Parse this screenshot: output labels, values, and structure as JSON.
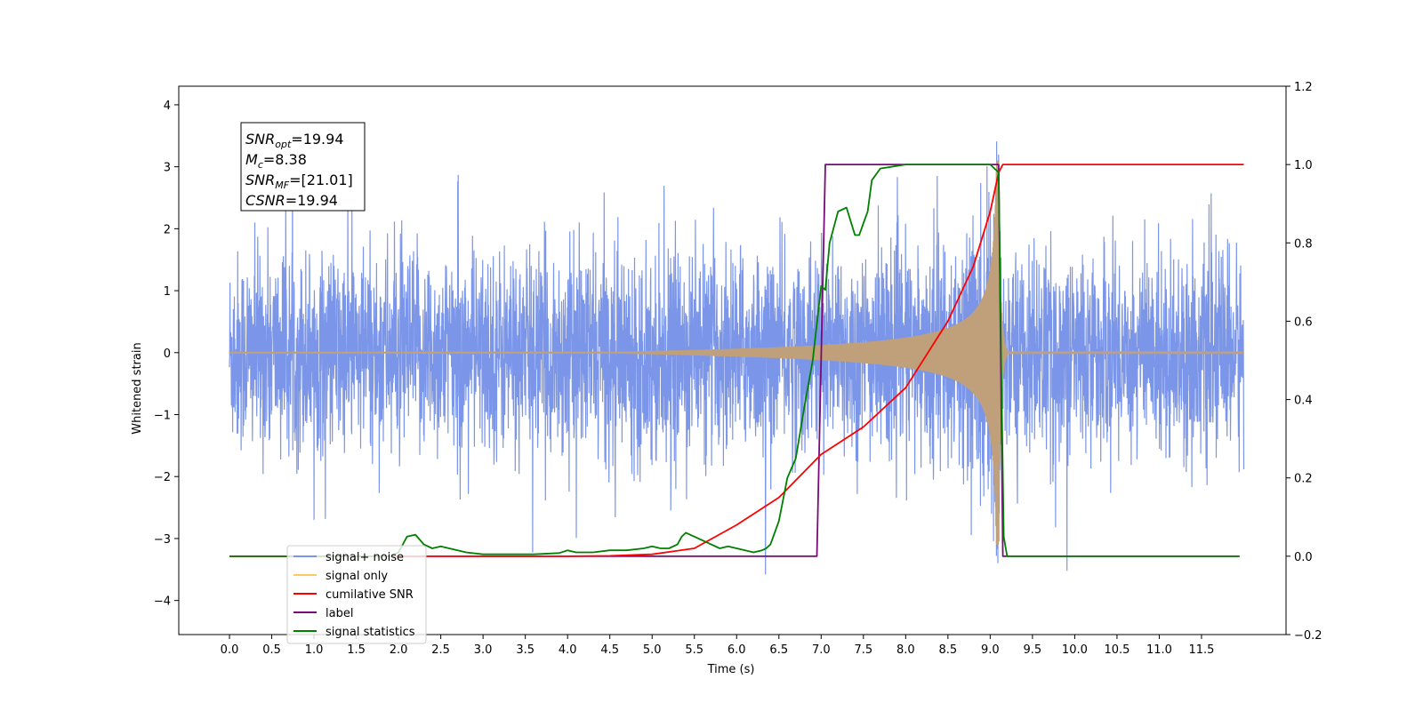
{
  "chart_data": {
    "type": "line",
    "xlabel": "Time (s)",
    "ylabel": "Whitened strain",
    "xlim": [
      -0.6,
      12.5
    ],
    "ylim": [
      -4.55,
      4.3
    ],
    "y2lim": [
      -0.2,
      1.2
    ],
    "grid": false,
    "legend_position": "lower-left",
    "x_ticks": [
      0.0,
      0.5,
      1.0,
      1.5,
      2.0,
      2.5,
      3.0,
      3.5,
      4.0,
      4.5,
      5.0,
      5.5,
      6.0,
      6.5,
      7.0,
      7.5,
      8.0,
      8.5,
      9.0,
      9.5,
      10.0,
      10.5,
      11.0,
      11.5
    ],
    "x_tick_labels": [
      "0.0",
      "0.5",
      "1.0",
      "1.5",
      "2.0",
      "2.5",
      "3.0",
      "3.5",
      "4.0",
      "4.5",
      "5.0",
      "5.5",
      "6.0",
      "6.5",
      "7.0",
      "7.5",
      "8.0",
      "8.5",
      "9.0",
      "9.5",
      "10.0",
      "10.5",
      "11.0",
      "11.5"
    ],
    "y_ticks": [
      4,
      3,
      2,
      1,
      0,
      -1,
      -2,
      -3,
      -4
    ],
    "y_tick_labels": [
      "4",
      "3",
      "2",
      "1",
      "0",
      "−1",
      "−2",
      "−3",
      "−4"
    ],
    "y2_ticks": [
      1.2,
      1.0,
      0.8,
      0.6,
      0.4,
      0.2,
      0.0,
      -0.2
    ],
    "y2_tick_labels": [
      "1.2",
      "1.0",
      "0.8",
      "0.6",
      "0.4",
      "0.2",
      "0.0",
      "−0.2"
    ],
    "info_box": {
      "lines": [
        {
          "sym": "SNR",
          "sub": "opt",
          "value": "=19.94"
        },
        {
          "sym": "M",
          "sub": "c",
          "value": "=8.38"
        },
        {
          "sym": "SNR",
          "sub": "MF",
          "value": "=[21.01]"
        },
        {
          "sym": "CSNR",
          "sub": "",
          "value": "=19.94"
        }
      ]
    },
    "series": [
      {
        "name": "signal+ noise",
        "axis": "left",
        "color": "#7b96e8",
        "description_values": {
          "x_range": [
            0.0,
            12.0
          ],
          "noise_typical_amplitude": 1.2,
          "noise_peak_amplitude": 3.9
        }
      },
      {
        "name": "signal only",
        "axis": "left",
        "color": "#bfa07a",
        "chirp": {
          "start": 4.0,
          "merger": 9.1,
          "peak_amplitude": 3.1,
          "ringdown_end": 9.2
        }
      },
      {
        "name": "cumilative SNR",
        "axis": "right",
        "color": "#ff0000",
        "x": [
          0.0,
          3.0,
          4.0,
          4.5,
          5.0,
          5.5,
          6.0,
          6.5,
          7.0,
          7.5,
          8.0,
          8.5,
          8.8,
          9.0,
          9.1,
          9.15,
          12.0
        ],
        "values": [
          0.0,
          0.0,
          0.0,
          0.001,
          0.005,
          0.02,
          0.08,
          0.15,
          0.26,
          0.33,
          0.43,
          0.6,
          0.74,
          0.88,
          0.98,
          1.0,
          1.0
        ]
      },
      {
        "name": "label",
        "axis": "right",
        "color": "#7a0a7a",
        "x": [
          0.0,
          6.95,
          7.05,
          9.1,
          9.15,
          11.95
        ],
        "values": [
          0.0,
          0.0,
          1.0,
          1.0,
          0.0,
          0.0
        ]
      },
      {
        "name": "signal statistics",
        "axis": "right",
        "color": "#008000",
        "x": [
          0.0,
          1.9,
          2.0,
          2.1,
          2.2,
          2.3,
          2.4,
          2.5,
          2.6,
          2.7,
          2.8,
          3.0,
          3.3,
          3.6,
          3.9,
          4.0,
          4.1,
          4.3,
          4.5,
          4.7,
          4.9,
          5.0,
          5.1,
          5.2,
          5.3,
          5.35,
          5.4,
          5.5,
          5.6,
          5.7,
          5.8,
          5.9,
          6.0,
          6.1,
          6.2,
          6.3,
          6.35,
          6.4,
          6.5,
          6.6,
          6.7,
          6.8,
          6.9,
          7.0,
          7.05,
          7.1,
          7.2,
          7.3,
          7.4,
          7.45,
          7.5,
          7.55,
          7.6,
          7.7,
          8.0,
          8.5,
          9.0,
          9.1,
          9.13,
          9.16,
          9.2,
          11.95
        ],
        "values": [
          0.0,
          0.0,
          0.01,
          0.05,
          0.055,
          0.03,
          0.02,
          0.025,
          0.02,
          0.015,
          0.01,
          0.005,
          0.005,
          0.005,
          0.008,
          0.015,
          0.01,
          0.01,
          0.015,
          0.015,
          0.02,
          0.025,
          0.02,
          0.02,
          0.03,
          0.05,
          0.06,
          0.05,
          0.04,
          0.03,
          0.02,
          0.025,
          0.02,
          0.015,
          0.01,
          0.015,
          0.02,
          0.03,
          0.09,
          0.2,
          0.25,
          0.38,
          0.5,
          0.69,
          0.68,
          0.8,
          0.88,
          0.89,
          0.82,
          0.82,
          0.85,
          0.88,
          0.96,
          0.99,
          1.0,
          1.0,
          1.0,
          0.98,
          0.5,
          0.05,
          0.0,
          0.0
        ]
      }
    ]
  }
}
